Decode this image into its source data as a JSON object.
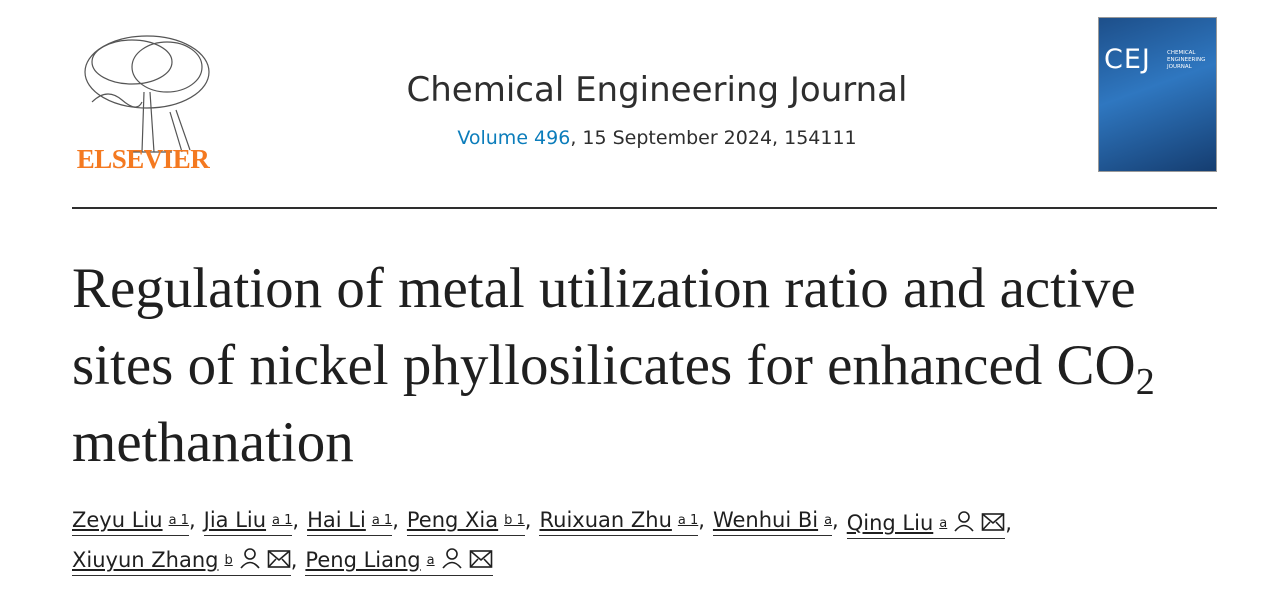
{
  "publisher": "ELSEVIER",
  "journal": "Chemical Engineering Journal",
  "volume": "Volume 496",
  "issue_info": ", 15 September 2024, 154111",
  "cover": {
    "abbreviation": "CEJ",
    "name": "CHEMICAL ENGINEERING JOURNAL"
  },
  "title": {
    "before": "Regulation of metal utilization ratio and active sites of nickel phyllosilicates for enhanced CO",
    "subscript": "2",
    "after": "methanation"
  },
  "separator": ",",
  "authors": [
    {
      "name": "Zeyu Liu",
      "sup": "a 1",
      "corresponding": false
    },
    {
      "name": "Jia Liu",
      "sup": "a 1",
      "corresponding": false
    },
    {
      "name": "Hai Li",
      "sup": "a 1",
      "corresponding": false
    },
    {
      "name": "Peng Xia",
      "sup": "b 1",
      "corresponding": false
    },
    {
      "name": "Ruixuan Zhu",
      "sup": "a 1",
      "corresponding": false
    },
    {
      "name": "Wenhui Bi",
      "sup": "a",
      "corresponding": false
    },
    {
      "name": "Qing Liu",
      "sup": "a",
      "corresponding": true
    },
    {
      "name": "Xiuyun Zhang",
      "sup": "b",
      "corresponding": true
    },
    {
      "name": "Peng Liang",
      "sup": "a",
      "corresponding": true
    }
  ]
}
